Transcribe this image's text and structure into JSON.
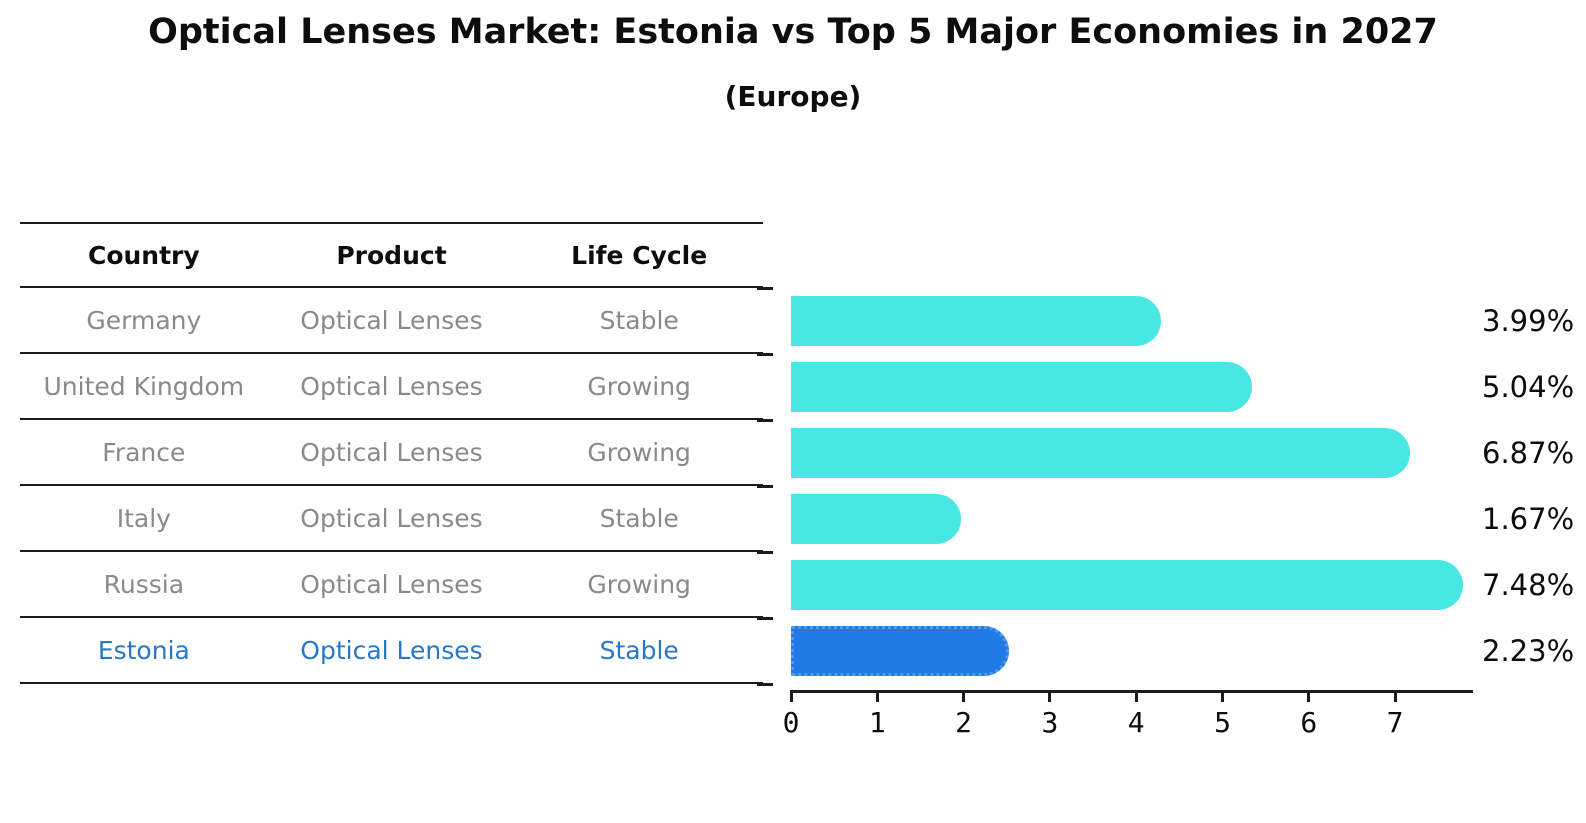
{
  "title": "Optical Lenses Market: Estonia vs Top 5 Major Economies in 2027",
  "subtitle": "(Europe)",
  "table": {
    "headers": [
      "Country",
      "Product",
      "Life Cycle"
    ],
    "rows": [
      {
        "country": "Germany",
        "product": "Optical Lenses",
        "life_cycle": "Stable",
        "highlighted": false
      },
      {
        "country": "United Kingdom",
        "product": "Optical Lenses",
        "life_cycle": "Growing",
        "highlighted": false
      },
      {
        "country": "France",
        "product": "Optical Lenses",
        "life_cycle": "Growing",
        "highlighted": false
      },
      {
        "country": "Italy",
        "product": "Optical Lenses",
        "life_cycle": "Stable",
        "highlighted": false
      },
      {
        "country": "Russia",
        "product": "Optical Lenses",
        "life_cycle": "Growing",
        "highlighted": false
      },
      {
        "country": "Estonia",
        "product": "Optical Lenses",
        "life_cycle": "Stable",
        "highlighted": true
      }
    ]
  },
  "chart_data": {
    "type": "bar",
    "orientation": "horizontal",
    "title": "Optical Lenses Market: Estonia vs Top 5 Major Economies in 2027",
    "subtitle": "(Europe)",
    "categories": [
      "Germany",
      "United Kingdom",
      "France",
      "Italy",
      "Russia",
      "Estonia"
    ],
    "values": [
      3.99,
      5.04,
      6.87,
      1.67,
      7.48,
      2.23
    ],
    "value_labels": [
      "3.99%",
      "5.04%",
      "6.87%",
      "1.67%",
      "7.48%",
      "2.23%"
    ],
    "x_ticks": [
      0,
      1,
      2,
      3,
      4,
      5,
      6,
      7
    ],
    "xlim": [
      0,
      7.89
    ],
    "xlabel": "",
    "ylabel": "",
    "grid": false,
    "legend": false,
    "highlight_index": 5
  },
  "colors": {
    "bar": "#48e7e3",
    "highlight_bar": "#2079e5",
    "highlight_border": "#4f9bf2",
    "highlight_text": "#2878c8",
    "cell_text": "#8a8a8a",
    "header_text": "#0d0d0d",
    "line": "#1c1c1c"
  }
}
